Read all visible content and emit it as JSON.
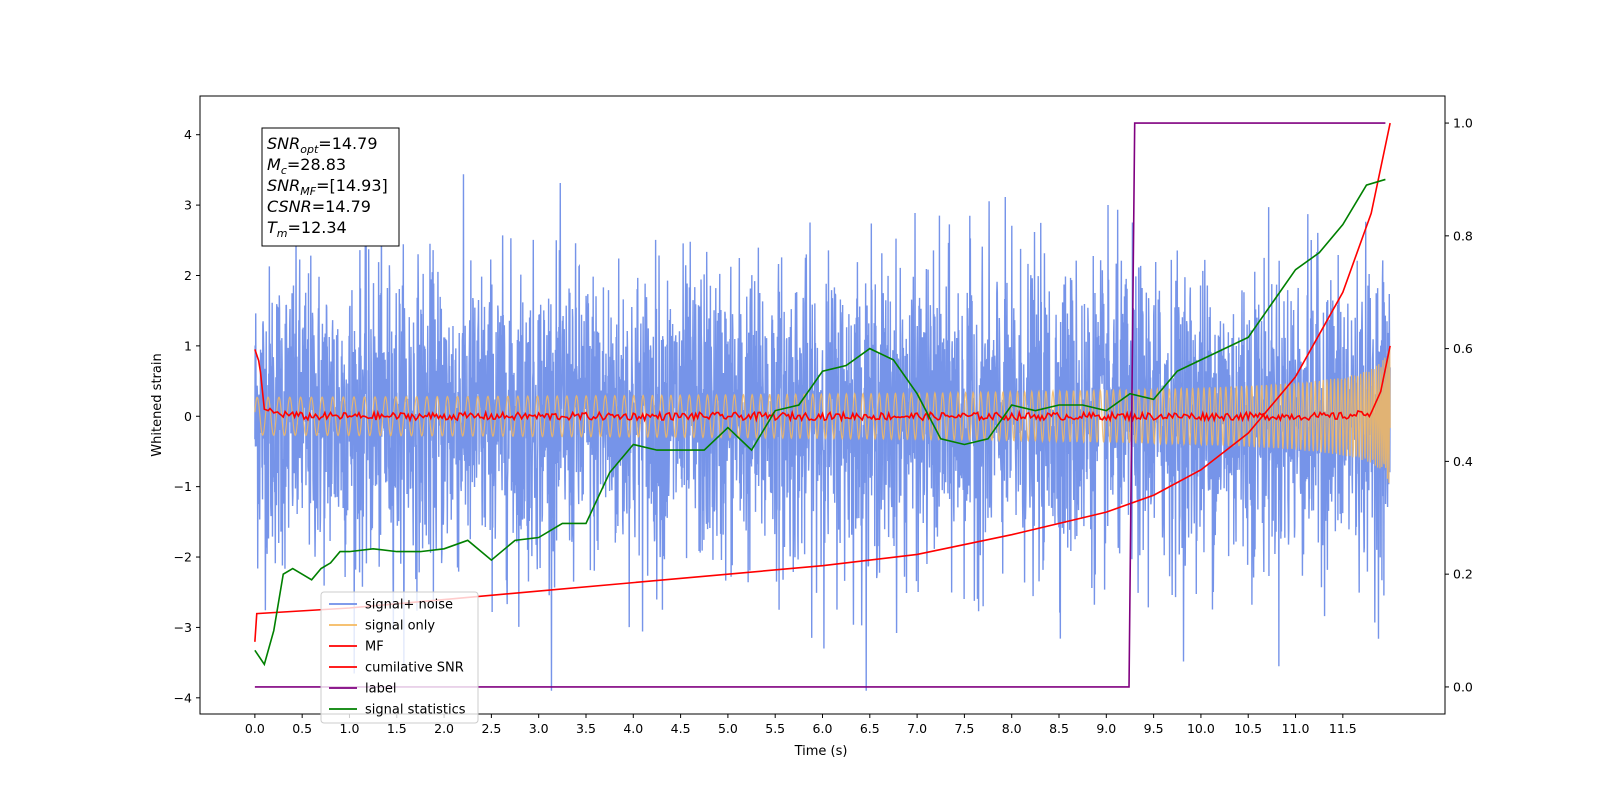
{
  "chart_data": {
    "type": "line",
    "xlabel": "Time (s)",
    "ylabel": "Whitened strain",
    "xlim": [
      -0.58,
      12.58
    ],
    "ylim": [
      -4.23,
      4.55
    ],
    "y2lim": [
      -0.048,
      1.048
    ],
    "x_ticks": [
      "0.0",
      "0.5",
      "1.0",
      "1.5",
      "2.0",
      "2.5",
      "3.0",
      "3.5",
      "4.0",
      "4.5",
      "5.0",
      "5.5",
      "6.0",
      "6.5",
      "7.0",
      "7.5",
      "8.0",
      "8.5",
      "9.0",
      "9.5",
      "10.0",
      "10.5",
      "11.0",
      "11.5"
    ],
    "y_ticks": [
      "−4",
      "−3",
      "−2",
      "−1",
      "0",
      "1",
      "2",
      "3",
      "4"
    ],
    "y2_ticks": [
      "0.0",
      "0.2",
      "0.4",
      "0.6",
      "0.8",
      "1.0"
    ],
    "grid": false,
    "legend_position": "lower-left",
    "annotation": {
      "lines": [
        {
          "base": "SNR",
          "sub": "opt",
          "rest": "=14.79"
        },
        {
          "base": "M",
          "sub": "c",
          "rest": "=28.83"
        },
        {
          "base": "SNR",
          "sub": "MF",
          "rest": "=[14.93]"
        },
        {
          "base": "CSNR",
          "sub": "",
          "rest": "=14.79"
        },
        {
          "base": "T",
          "sub": "m",
          "rest": "=12.34"
        }
      ]
    },
    "series": [
      {
        "name": "signal+ noise",
        "color": "#6f8ee8",
        "axis": "left",
        "style": "noise",
        "t_start": 0.0,
        "t_end": 12.0,
        "amplitude_range": [
          -3.9,
          4.2
        ]
      },
      {
        "name": "signal only",
        "color": "#f5b95f",
        "axis": "left",
        "style": "chirp",
        "t_start": 0.0,
        "t_end": 12.0,
        "amplitude_end": 1.0
      },
      {
        "name": "MF",
        "color": "#ff0000",
        "axis": "left",
        "x": [
          0.0,
          0.05,
          0.1,
          0.2,
          0.5,
          1.0,
          2.0,
          3.0,
          4.0,
          5.0,
          6.0,
          7.0,
          8.0,
          9.0,
          10.0,
          11.0,
          11.5,
          11.8,
          11.9,
          12.0
        ],
        "y": [
          0.95,
          0.75,
          0.1,
          0.05,
          0.0,
          0.0,
          0.0,
          0.0,
          0.0,
          0.0,
          0.0,
          0.0,
          0.0,
          0.0,
          0.0,
          0.0,
          0.0,
          0.05,
          0.35,
          1.0
        ]
      },
      {
        "name": "cumilative SNR",
        "color": "#ff0000",
        "axis": "right",
        "x": [
          0.0,
          0.02,
          1.0,
          2.0,
          3.0,
          4.0,
          5.0,
          6.0,
          7.0,
          8.0,
          9.0,
          9.5,
          10.0,
          10.5,
          11.0,
          11.5,
          11.8,
          12.0
        ],
        "y": [
          0.08,
          0.13,
          0.14,
          0.155,
          0.17,
          0.185,
          0.2,
          0.215,
          0.235,
          0.27,
          0.31,
          0.34,
          0.385,
          0.45,
          0.55,
          0.7,
          0.84,
          1.0
        ]
      },
      {
        "name": "label",
        "color": "#800080",
        "axis": "right",
        "x": [
          0.0,
          9.24,
          9.3,
          11.95
        ],
        "y": [
          0.0,
          0.0,
          1.0,
          1.0
        ]
      },
      {
        "name": "signal statistics",
        "color": "#008000",
        "axis": "right",
        "x": [
          0.0,
          0.1,
          0.2,
          0.3,
          0.4,
          0.5,
          0.6,
          0.7,
          0.8,
          0.9,
          1.0,
          1.25,
          1.5,
          1.75,
          2.0,
          2.25,
          2.5,
          2.75,
          3.0,
          3.25,
          3.5,
          3.75,
          4.0,
          4.25,
          4.5,
          4.75,
          5.0,
          5.25,
          5.5,
          5.75,
          6.0,
          6.25,
          6.5,
          6.75,
          7.0,
          7.25,
          7.5,
          7.75,
          8.0,
          8.25,
          8.5,
          8.75,
          9.0,
          9.25,
          9.5,
          9.75,
          10.0,
          10.25,
          10.5,
          10.75,
          11.0,
          11.25,
          11.5,
          11.75,
          11.95
        ],
        "y": [
          0.065,
          0.04,
          0.1,
          0.2,
          0.21,
          0.2,
          0.19,
          0.21,
          0.22,
          0.24,
          0.24,
          0.245,
          0.24,
          0.24,
          0.245,
          0.26,
          0.225,
          0.26,
          0.265,
          0.29,
          0.29,
          0.38,
          0.43,
          0.42,
          0.42,
          0.42,
          0.46,
          0.42,
          0.49,
          0.5,
          0.56,
          0.57,
          0.6,
          0.58,
          0.52,
          0.44,
          0.43,
          0.44,
          0.5,
          0.49,
          0.5,
          0.5,
          0.49,
          0.52,
          0.51,
          0.56,
          0.58,
          0.6,
          0.62,
          0.68,
          0.74,
          0.77,
          0.82,
          0.89,
          0.9
        ]
      }
    ]
  }
}
